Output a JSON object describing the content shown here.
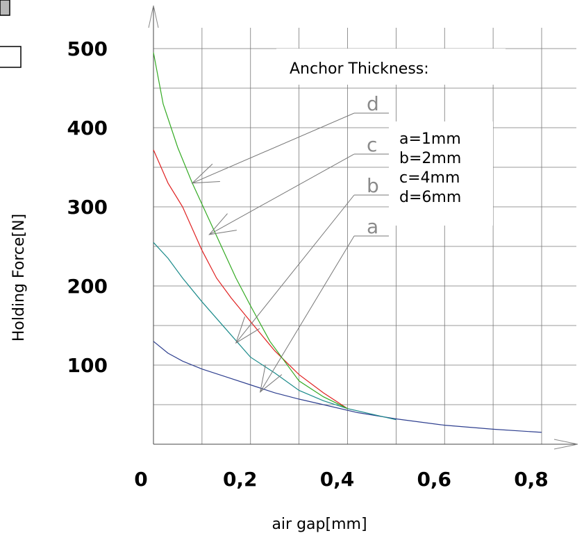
{
  "chart_data": {
    "type": "line",
    "xlabel": "air gap[mm]",
    "ylabel": "Holding Force[N]",
    "xlim": [
      0,
      0.8
    ],
    "ylim": [
      0,
      500
    ],
    "x_ticks": [
      "0",
      "0,2",
      "0,4",
      "0,6",
      "0,8"
    ],
    "y_ticks": [
      "100",
      "200",
      "300",
      "400",
      "500"
    ],
    "grid": true,
    "legend": {
      "title": "Anchor Thickness:",
      "entries": [
        "a=1mm",
        "b=2mm",
        "c=4mm",
        "d=6mm"
      ],
      "placement": "top-right"
    },
    "series": [
      {
        "name": "a",
        "color": "#2e3f8f",
        "points": [
          [
            0.0,
            130
          ],
          [
            0.03,
            115
          ],
          [
            0.06,
            105
          ],
          [
            0.1,
            95
          ],
          [
            0.15,
            85
          ],
          [
            0.2,
            75
          ],
          [
            0.25,
            65
          ],
          [
            0.3,
            57
          ],
          [
            0.35,
            50
          ],
          [
            0.42,
            40
          ],
          [
            0.5,
            32
          ],
          [
            0.6,
            24
          ],
          [
            0.7,
            19
          ],
          [
            0.8,
            15
          ]
        ]
      },
      {
        "name": "b",
        "color": "#1a8a8a",
        "points": [
          [
            0.0,
            255
          ],
          [
            0.03,
            235
          ],
          [
            0.06,
            210
          ],
          [
            0.1,
            180
          ],
          [
            0.15,
            145
          ],
          [
            0.2,
            110
          ],
          [
            0.25,
            90
          ],
          [
            0.3,
            68
          ],
          [
            0.35,
            55
          ],
          [
            0.4,
            45
          ],
          [
            0.45,
            38
          ],
          [
            0.5,
            31
          ]
        ]
      },
      {
        "name": "c",
        "color": "#e02020",
        "points": [
          [
            0.0,
            372
          ],
          [
            0.03,
            330
          ],
          [
            0.06,
            300
          ],
          [
            0.1,
            245
          ],
          [
            0.13,
            210
          ],
          [
            0.16,
            185
          ],
          [
            0.2,
            155
          ],
          [
            0.25,
            118
          ],
          [
            0.3,
            88
          ],
          [
            0.35,
            65
          ],
          [
            0.4,
            45
          ]
        ]
      },
      {
        "name": "d",
        "color": "#33aa22",
        "points": [
          [
            0.0,
            495
          ],
          [
            0.02,
            430
          ],
          [
            0.05,
            375
          ],
          [
            0.08,
            330
          ],
          [
            0.11,
            290
          ],
          [
            0.14,
            250
          ],
          [
            0.17,
            210
          ],
          [
            0.2,
            175
          ],
          [
            0.24,
            130
          ],
          [
            0.27,
            105
          ],
          [
            0.3,
            80
          ],
          [
            0.35,
            60
          ],
          [
            0.4,
            45
          ]
        ]
      }
    ],
    "curve_labels": [
      "a",
      "b",
      "c",
      "d"
    ]
  }
}
